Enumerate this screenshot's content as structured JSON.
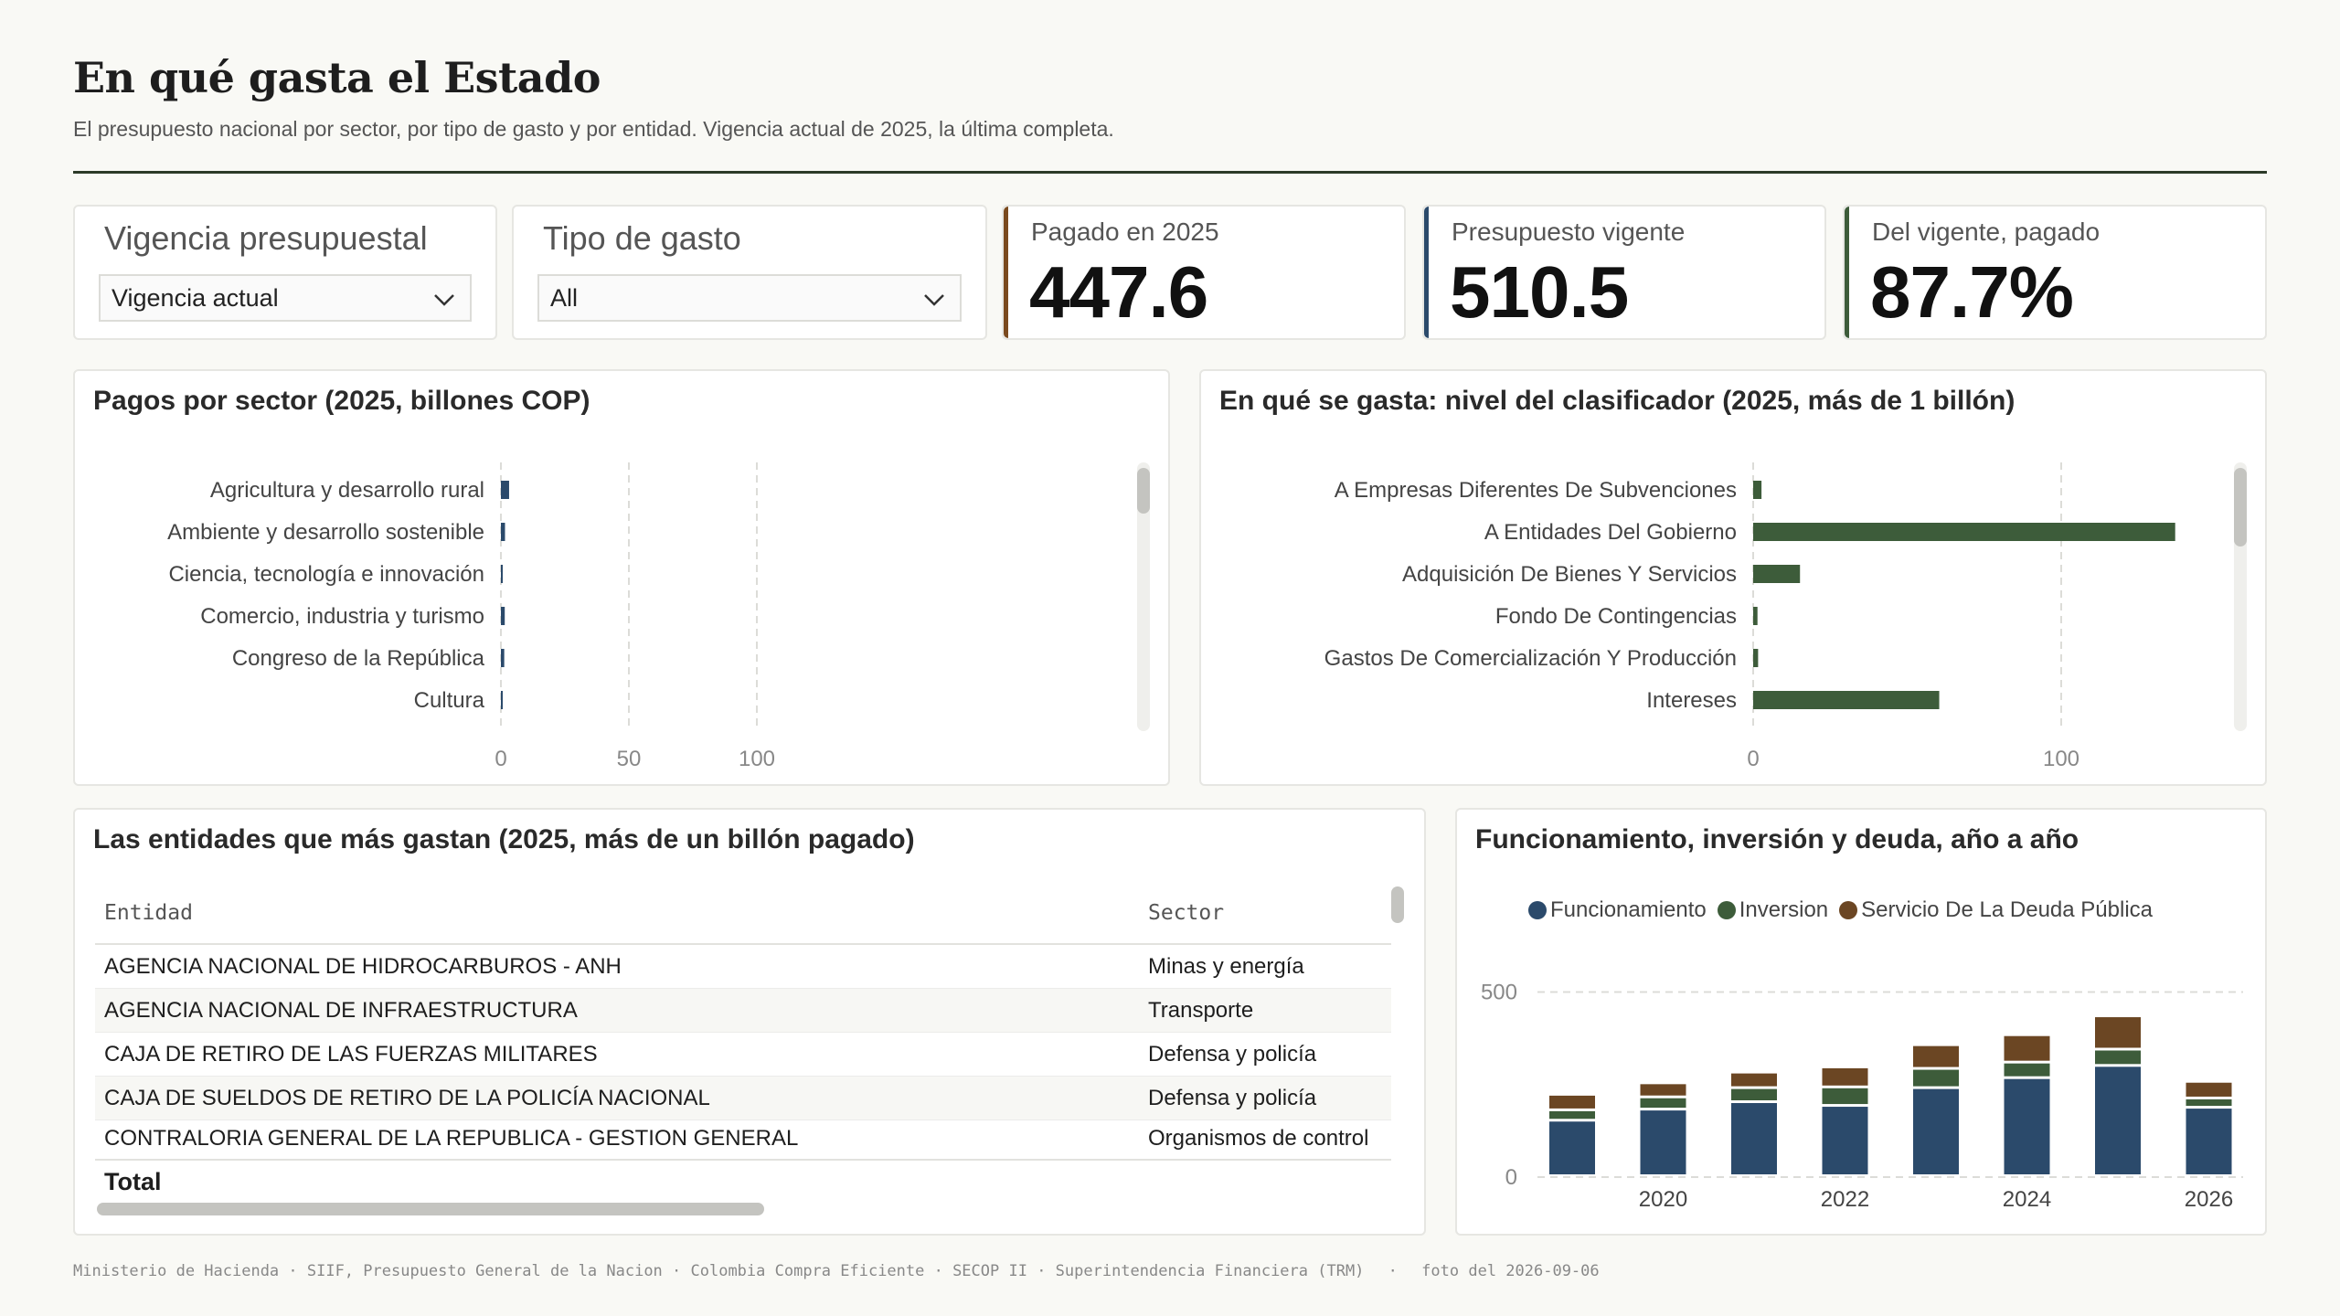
{
  "header": {
    "title": "En qué gasta el Estado",
    "subtitle": "El presupuesto nacional por sector, por tipo de gasto y por entidad. Vigencia actual de 2025, la última completa."
  },
  "filters": {
    "vigencia": {
      "label": "Vigencia presupuestal",
      "value": "Vigencia actual"
    },
    "tipo": {
      "label": "Tipo de gasto",
      "value": "All"
    }
  },
  "kpis": [
    {
      "label": "Pagado en 2025",
      "value": "447.6",
      "accent": "#7a4a1e"
    },
    {
      "label": "Presupuesto vigente",
      "value": "510.5",
      "accent": "#2b4a6b"
    },
    {
      "label": "Del vigente, pagado",
      "value": "87.7%",
      "accent": "#3d5c3a"
    }
  ],
  "sector_panel": {
    "title": "Pagos por sector (2025, billones COP)",
    "chart_data": {
      "type": "bar",
      "orientation": "horizontal",
      "categories": [
        "Agricultura y desarrollo rural",
        "Ambiente y desarrollo sostenible",
        "Ciencia, tecnología e innovación",
        "Comercio, industria y turismo",
        "Congreso de la República",
        "Cultura"
      ],
      "values": [
        3.2,
        1.6,
        0.4,
        1.5,
        1.3,
        0.7
      ],
      "xlim": [
        0,
        125
      ],
      "xticks": [
        0,
        50,
        100
      ],
      "grid": true,
      "color": "#2b4a6b"
    }
  },
  "clasificador_panel": {
    "title": "En qué se gasta: nivel del clasificador (2025, más de 1 billón)",
    "chart_data": {
      "type": "bar",
      "orientation": "horizontal",
      "categories": [
        "A Empresas Diferentes De Subvenciones",
        "A Entidades Del Gobierno",
        "Adquisición De Bienes Y Servicios",
        "Fondo De Contingencias",
        "Gastos De Comercialización Y Producción",
        "Intereses"
      ],
      "values": [
        2.7,
        137,
        15.2,
        1.4,
        1.6,
        60.4
      ],
      "xlim": [
        0,
        150
      ],
      "xticks": [
        0,
        100
      ],
      "grid": true,
      "color": "#3d5c3a"
    }
  },
  "entidades_panel": {
    "title": "Las entidades que más gastan (2025, más de un billón pagado)",
    "columns": [
      "Entidad",
      "Sector"
    ],
    "rows": [
      [
        "AGENCIA NACIONAL DE HIDROCARBUROS - ANH",
        "Minas y energía"
      ],
      [
        "AGENCIA NACIONAL DE INFRAESTRUCTURA",
        "Transporte"
      ],
      [
        "CAJA DE RETIRO DE LAS FUERZAS MILITARES",
        "Defensa y policía"
      ],
      [
        "CAJA DE SUELDOS DE RETIRO DE LA POLICÍA NACIONAL",
        "Defensa y policía"
      ],
      [
        "CONTRALORIA GENERAL DE LA REPUBLICA - GESTION GENERAL",
        "Organismos de control"
      ]
    ],
    "total_label": "Total"
  },
  "anual_panel": {
    "title": "Funcionamiento, inversión y deuda, año a año",
    "chart_data": {
      "type": "bar",
      "stacked": true,
      "x": [
        2019,
        2020,
        2021,
        2022,
        2023,
        2024,
        2025,
        2026
      ],
      "xticks": [
        "2020",
        "2022",
        "2024",
        "2026"
      ],
      "yticks": [
        0,
        500
      ],
      "ylim": [
        0,
        520
      ],
      "grid": true,
      "legend_position": "top",
      "series": [
        {
          "name": "Funcionamiento",
          "color": "#2b4a6b",
          "values": [
            150,
            180,
            200,
            190,
            238,
            265,
            298,
            185
          ]
        },
        {
          "name": "Inversion",
          "color": "#3d5c3a",
          "values": [
            28,
            33,
            38,
            50,
            52,
            42,
            44,
            25
          ]
        },
        {
          "name": "Servicio De La Deuda Pública",
          "color": "#6b4623",
          "values": [
            42,
            38,
            42,
            54,
            64,
            74,
            90,
            45
          ]
        }
      ]
    }
  },
  "footer": {
    "sources": "Ministerio de Hacienda · SIIF, Presupuesto General de la Nacion · Colombia Compra Eficiente · SECOP II · Superintendencia Financiera (TRM)",
    "snapshot": "foto del 2026-09-06"
  }
}
